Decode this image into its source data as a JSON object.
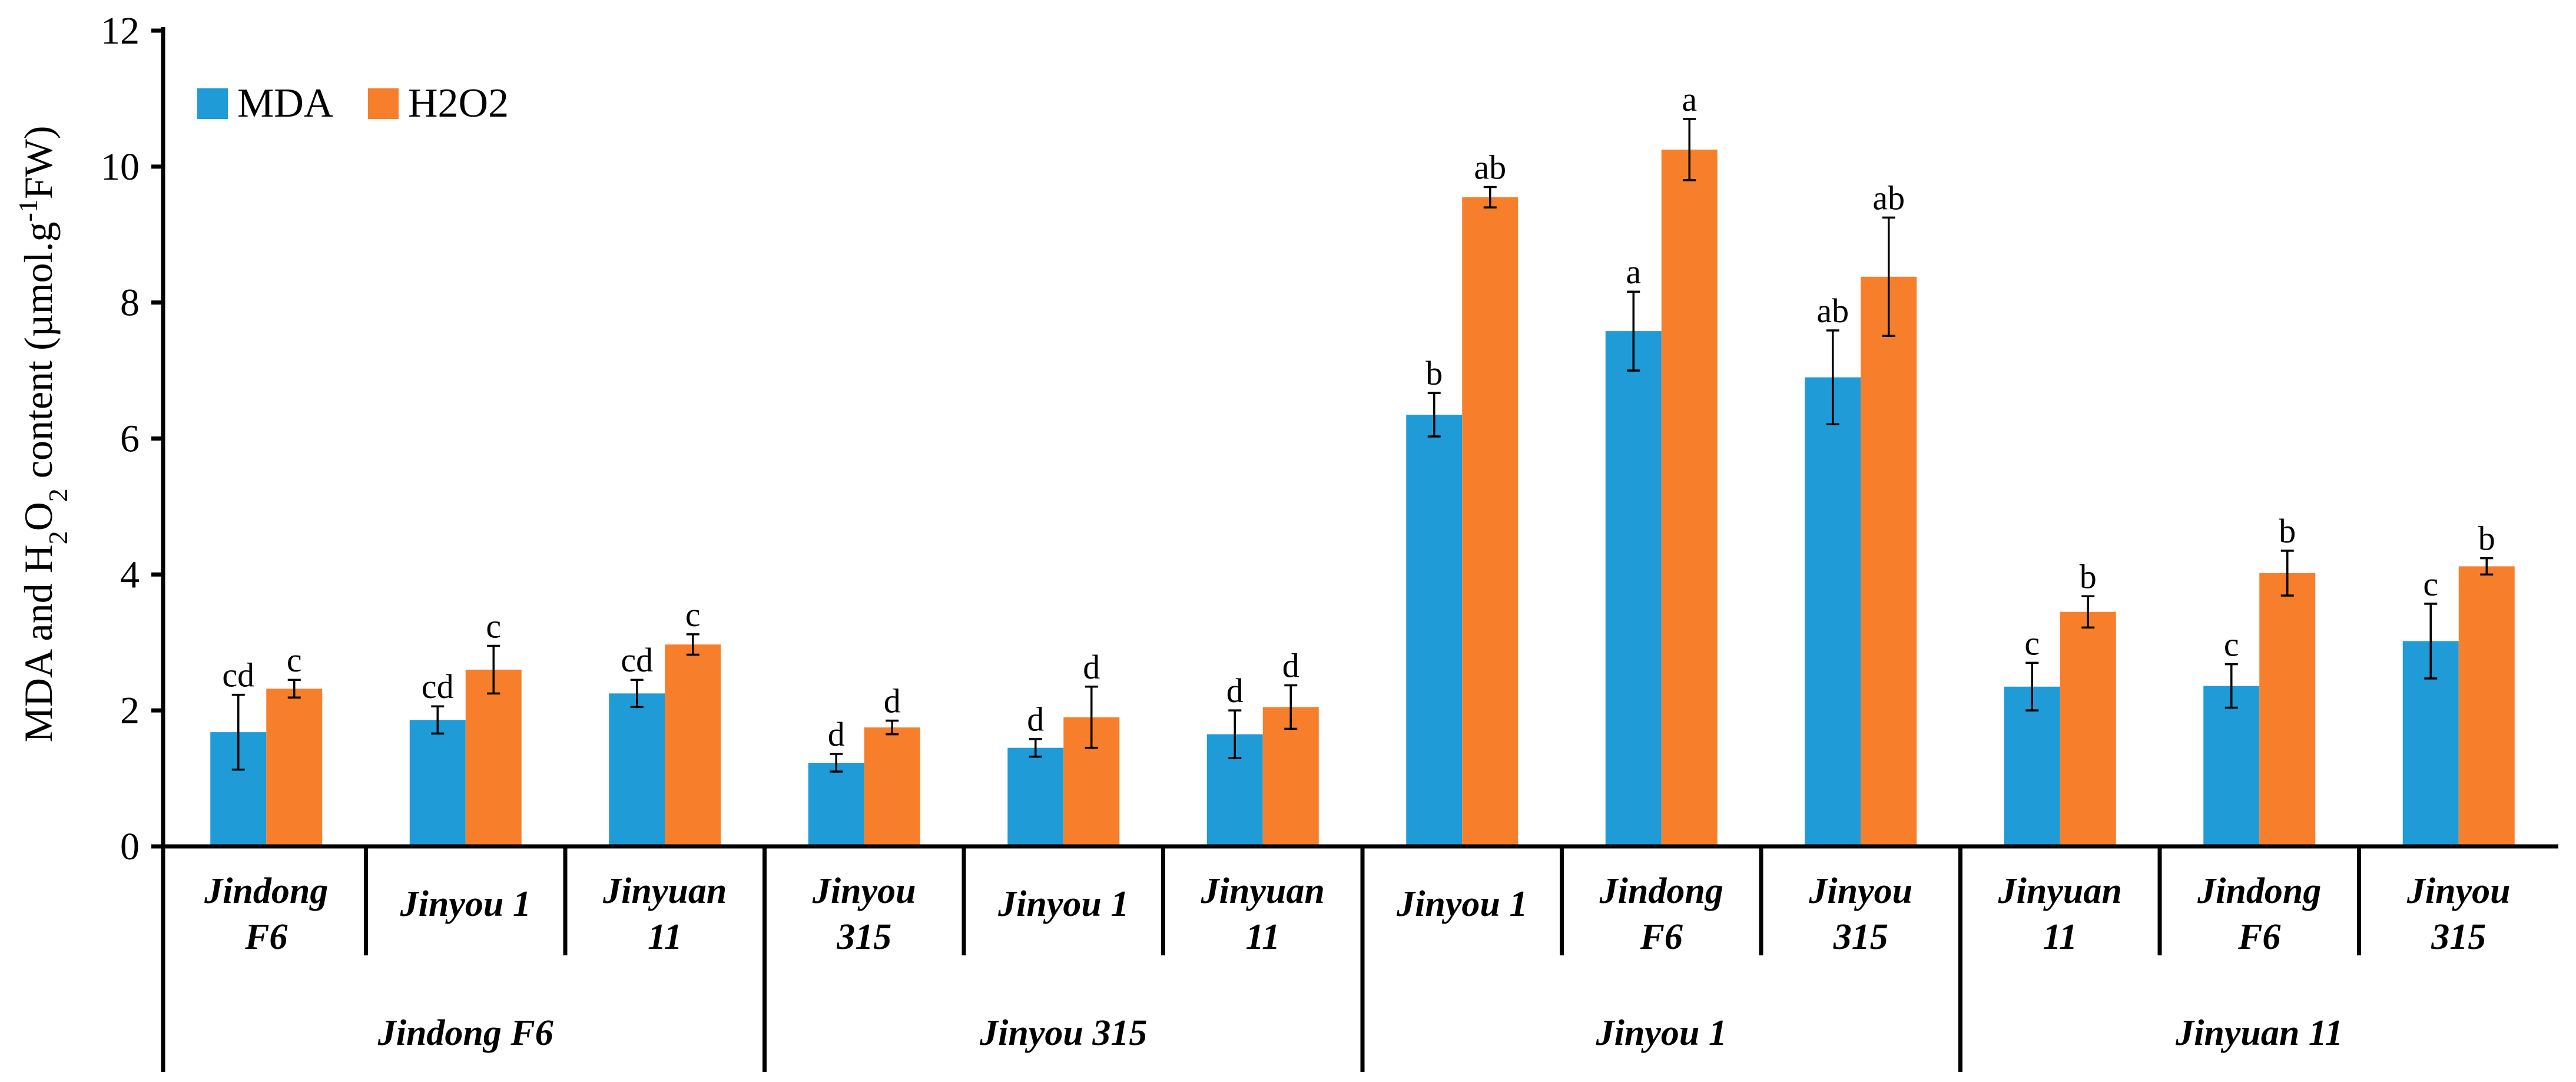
{
  "chart_data": {
    "type": "bar",
    "title": "",
    "xlabel": "",
    "ylabel": "MDA and H2O2 content (µmol.g-1FW)",
    "ylabel_parts": {
      "pre": "MDA and H",
      "sub2": "2",
      "mid": "O",
      "sub2b": "2",
      "post": " content (µmol.g",
      "sup": "-1",
      "end": "FW)"
    },
    "ylim": [
      0,
      12
    ],
    "yticks": [
      "0",
      "2",
      "4",
      "6",
      "8",
      "10",
      "12"
    ],
    "grid": false,
    "legend_position": "top-left",
    "colors": {
      "MDA": "#1f9bd7",
      "H2O2": "#f77f2b"
    },
    "categories": [
      {
        "line1": "Jindong",
        "line2": "F6"
      },
      {
        "line1": "Jinyou 1",
        "line2": ""
      },
      {
        "line1": "Jinyuan",
        "line2": "11"
      },
      {
        "line1": "Jinyou",
        "line2": "315"
      },
      {
        "line1": "Jinyou 1",
        "line2": ""
      },
      {
        "line1": "Jinyuan",
        "line2": "11"
      },
      {
        "line1": "Jinyou 1",
        "line2": ""
      },
      {
        "line1": "Jindong",
        "line2": "F6"
      },
      {
        "line1": "Jinyou",
        "line2": "315"
      },
      {
        "line1": "Jinyuan",
        "line2": "11"
      },
      {
        "line1": "Jindong",
        "line2": "F6"
      },
      {
        "line1": "Jinyou",
        "line2": "315"
      }
    ],
    "groups": [
      {
        "label": "Jindong F6",
        "start": 0,
        "count": 3
      },
      {
        "label": "Jinyou 315",
        "start": 3,
        "count": 3
      },
      {
        "label": "Jinyou 1",
        "start": 6,
        "count": 3
      },
      {
        "label": "Jinyuan 11",
        "start": 9,
        "count": 3
      }
    ],
    "series": [
      {
        "name": "MDA",
        "values": [
          1.68,
          1.86,
          2.25,
          1.23,
          1.45,
          1.65,
          6.35,
          7.58,
          6.9,
          2.35,
          2.36,
          3.02
        ],
        "errors": [
          0.55,
          0.2,
          0.2,
          0.13,
          0.13,
          0.35,
          0.32,
          0.58,
          0.69,
          0.35,
          0.32,
          0.55
        ],
        "labels": [
          "cd",
          "cd",
          "cd",
          "d",
          "d",
          "d",
          "b",
          "a",
          "ab",
          "c",
          "c",
          "c"
        ]
      },
      {
        "name": "H2O2",
        "values": [
          2.32,
          2.6,
          2.97,
          1.75,
          1.9,
          2.05,
          9.55,
          10.25,
          8.38,
          3.45,
          4.02,
          4.12
        ],
        "errors": [
          0.13,
          0.35,
          0.15,
          0.1,
          0.45,
          0.32,
          0.15,
          0.45,
          0.87,
          0.23,
          0.33,
          0.12
        ],
        "labels": [
          "c",
          "c",
          "c",
          "d",
          "d",
          "d",
          "ab",
          "a",
          "ab",
          "b",
          "b",
          "b"
        ]
      }
    ]
  }
}
